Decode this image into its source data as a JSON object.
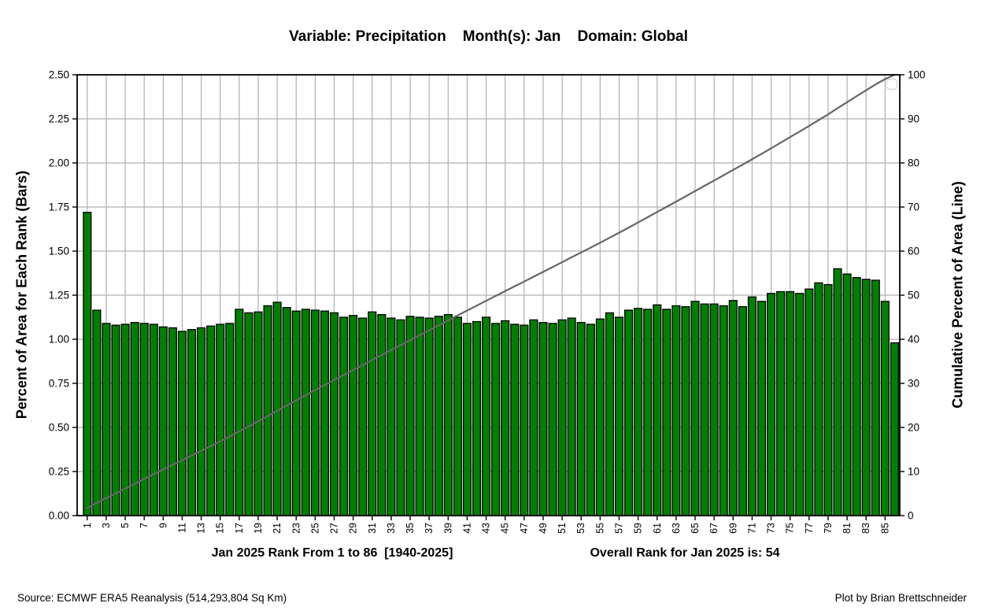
{
  "title": "Variable: Precipitation    Month(s): Jan    Domain: Global",
  "footer": {
    "source": "Source: ECMWF ERA5 Reanalysis (514,293,804 Sq Km)",
    "credit": "Plot by Brian Brettschneider"
  },
  "chart_data": {
    "type": "bar",
    "title": "Variable: Precipitation    Month(s): Jan    Domain: Global",
    "xlabel_left": "Jan 2025 Rank From 1 to 86  [1940-2025]",
    "xlabel_right": "Overall Rank for Jan 2025 is: 54",
    "ylabel_left": "Percent of Area for Each Rank (Bars)",
    "ylabel_right": "Cumulative Percent of Area (Line)",
    "x_range": [
      1,
      86
    ],
    "ylim_left": [
      0,
      2.5
    ],
    "ylim_right": [
      0,
      100
    ],
    "grid": true,
    "grid_color": "#b0b0b0",
    "legend": {
      "visible": true,
      "entries": [],
      "position": "top-right"
    },
    "yticks_left": [
      "0.00",
      "0.25",
      "0.50",
      "0.75",
      "1.00",
      "1.25",
      "1.50",
      "1.75",
      "2.00",
      "2.25",
      "2.50"
    ],
    "yticks_right": [
      0,
      10,
      20,
      30,
      40,
      50,
      60,
      70,
      80,
      90,
      100
    ],
    "xticks": [
      1,
      3,
      5,
      7,
      9,
      11,
      13,
      15,
      17,
      19,
      21,
      23,
      25,
      27,
      29,
      31,
      33,
      35,
      37,
      39,
      41,
      43,
      45,
      47,
      49,
      51,
      53,
      55,
      57,
      59,
      61,
      63,
      65,
      67,
      69,
      71,
      73,
      75,
      77,
      79,
      81,
      83,
      85
    ],
    "series": [
      {
        "name": "Percent of Area for Each Rank (Bars)",
        "type": "bar",
        "axis": "left",
        "color": "#008000",
        "edge_color": "#000000",
        "values": [
          1.72,
          1.165,
          1.09,
          1.08,
          1.085,
          1.095,
          1.09,
          1.085,
          1.07,
          1.065,
          1.045,
          1.055,
          1.065,
          1.075,
          1.085,
          1.09,
          1.17,
          1.15,
          1.155,
          1.19,
          1.21,
          1.18,
          1.16,
          1.17,
          1.165,
          1.16,
          1.15,
          1.125,
          1.135,
          1.12,
          1.155,
          1.14,
          1.12,
          1.11,
          1.13,
          1.125,
          1.12,
          1.13,
          1.14,
          1.125,
          1.09,
          1.1,
          1.125,
          1.09,
          1.105,
          1.085,
          1.08,
          1.11,
          1.095,
          1.09,
          1.11,
          1.12,
          1.095,
          1.085,
          1.115,
          1.15,
          1.125,
          1.165,
          1.175,
          1.17,
          1.195,
          1.17,
          1.19,
          1.185,
          1.215,
          1.2,
          1.2,
          1.19,
          1.22,
          1.185,
          1.24,
          1.215,
          1.26,
          1.27,
          1.27,
          1.26,
          1.285,
          1.32,
          1.31,
          1.4,
          1.37,
          1.35,
          1.34,
          1.335,
          1.215,
          0.98
        ]
      },
      {
        "name": "Cumulative Percent of Area (Line)",
        "type": "line",
        "axis": "right",
        "color": "#666666",
        "values": [
          1.72,
          2.88,
          3.97,
          5.05,
          6.13,
          7.22,
          8.31,
          9.4,
          10.46,
          11.53,
          12.57,
          13.63,
          14.69,
          15.76,
          16.85,
          17.93,
          19.1,
          20.25,
          21.4,
          22.59,
          23.8,
          24.98,
          26.14,
          27.31,
          28.47,
          29.63,
          30.78,
          31.9,
          33.03,
          34.15,
          35.3,
          36.44,
          37.56,
          38.67,
          39.8,
          40.92,
          42.04,
          43.17,
          44.31,
          45.43,
          46.52,
          47.62,
          48.74,
          49.83,
          50.93,
          52.01,
          53.09,
          54.2,
          55.29,
          56.38,
          57.49,
          58.61,
          59.7,
          60.79,
          61.9,
          63.05,
          64.17,
          65.34,
          66.51,
          67.68,
          68.87,
          70.04,
          71.23,
          72.41,
          73.62,
          74.82,
          76.02,
          77.21,
          78.43,
          79.61,
          80.85,
          82.06,
          83.32,
          84.59,
          85.86,
          87.11,
          88.4,
          89.71,
          91.02,
          92.42,
          93.79,
          95.14,
          96.48,
          97.81,
          99.02,
          100.0
        ]
      }
    ]
  }
}
